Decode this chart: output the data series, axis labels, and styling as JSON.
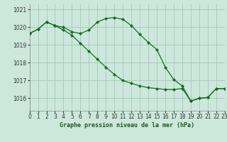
{
  "title": "Graphe pression niveau de la mer (hPa)",
  "background_color": "#cce8dd",
  "grid_color": "#aaccbb",
  "line_color": "#1a6b20",
  "marker_color": "#1a6b20",
  "xlim": [
    0,
    23
  ],
  "ylim": [
    1015.3,
    1021.3
  ],
  "yticks": [
    1016,
    1017,
    1018,
    1019,
    1020,
    1021
  ],
  "xticks": [
    0,
    1,
    2,
    3,
    4,
    5,
    6,
    7,
    8,
    9,
    10,
    11,
    12,
    13,
    14,
    15,
    16,
    17,
    18,
    19,
    20,
    21,
    22,
    23
  ],
  "series1_x": [
    0,
    1,
    2,
    3,
    4,
    5,
    6,
    7,
    8,
    9,
    10,
    11,
    12,
    13,
    14,
    15,
    16,
    17,
    18,
    19,
    20,
    21,
    22,
    23
  ],
  "series1_y": [
    1019.65,
    1019.9,
    1020.3,
    1020.1,
    1020.0,
    1019.75,
    1019.65,
    1019.85,
    1020.3,
    1020.5,
    1020.55,
    1020.45,
    1020.1,
    1019.6,
    1019.15,
    1018.75,
    1017.75,
    1017.05,
    1016.7,
    1015.85,
    1016.0,
    1016.05,
    1016.55,
    1016.55
  ],
  "series2_x": [
    0,
    1,
    2,
    3,
    4,
    5,
    6,
    7,
    8,
    9,
    10,
    11,
    12,
    13,
    14,
    15,
    16,
    17,
    18,
    19,
    20,
    21,
    22,
    23
  ],
  "series2_y": [
    1019.65,
    1019.9,
    1020.3,
    1020.1,
    1019.85,
    1019.55,
    1019.1,
    1018.65,
    1018.2,
    1017.75,
    1017.35,
    1017.0,
    1016.85,
    1016.7,
    1016.6,
    1016.55,
    1016.5,
    1016.5,
    1016.55,
    1015.85,
    1016.0,
    1016.05,
    1016.55,
    1016.55
  ]
}
